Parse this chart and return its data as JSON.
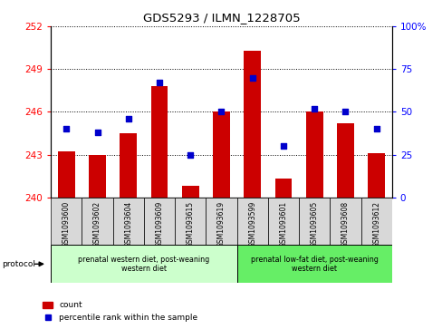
{
  "title": "GDS5293 / ILMN_1228705",
  "samples": [
    "GSM1093600",
    "GSM1093602",
    "GSM1093604",
    "GSM1093609",
    "GSM1093615",
    "GSM1093619",
    "GSM1093599",
    "GSM1093601",
    "GSM1093605",
    "GSM1093608",
    "GSM1093612"
  ],
  "counts": [
    243.2,
    243.0,
    244.5,
    247.8,
    240.8,
    246.0,
    250.3,
    241.3,
    246.0,
    245.2,
    243.1
  ],
  "percentiles": [
    40,
    38,
    46,
    67,
    25,
    50,
    70,
    30,
    52,
    50,
    40
  ],
  "ylim_left": [
    240,
    252
  ],
  "ylim_right": [
    0,
    100
  ],
  "yticks_left": [
    240,
    243,
    246,
    249,
    252
  ],
  "yticks_right": [
    0,
    25,
    50,
    75,
    100
  ],
  "bar_color": "#cc0000",
  "dot_color": "#0000cc",
  "bar_bottom": 240,
  "group1_label": "prenatal western diet, post-weaning\nwestern diet",
  "group2_label": "prenatal low-fat diet, post-weaning\nwestern diet",
  "group1_count": 6,
  "group2_count": 5,
  "protocol_label": "protocol",
  "legend_count": "count",
  "legend_percentile": "percentile rank within the sample",
  "group1_bg": "#ccffcc",
  "group2_bg": "#66ee66",
  "sample_bg": "#d8d8d8"
}
